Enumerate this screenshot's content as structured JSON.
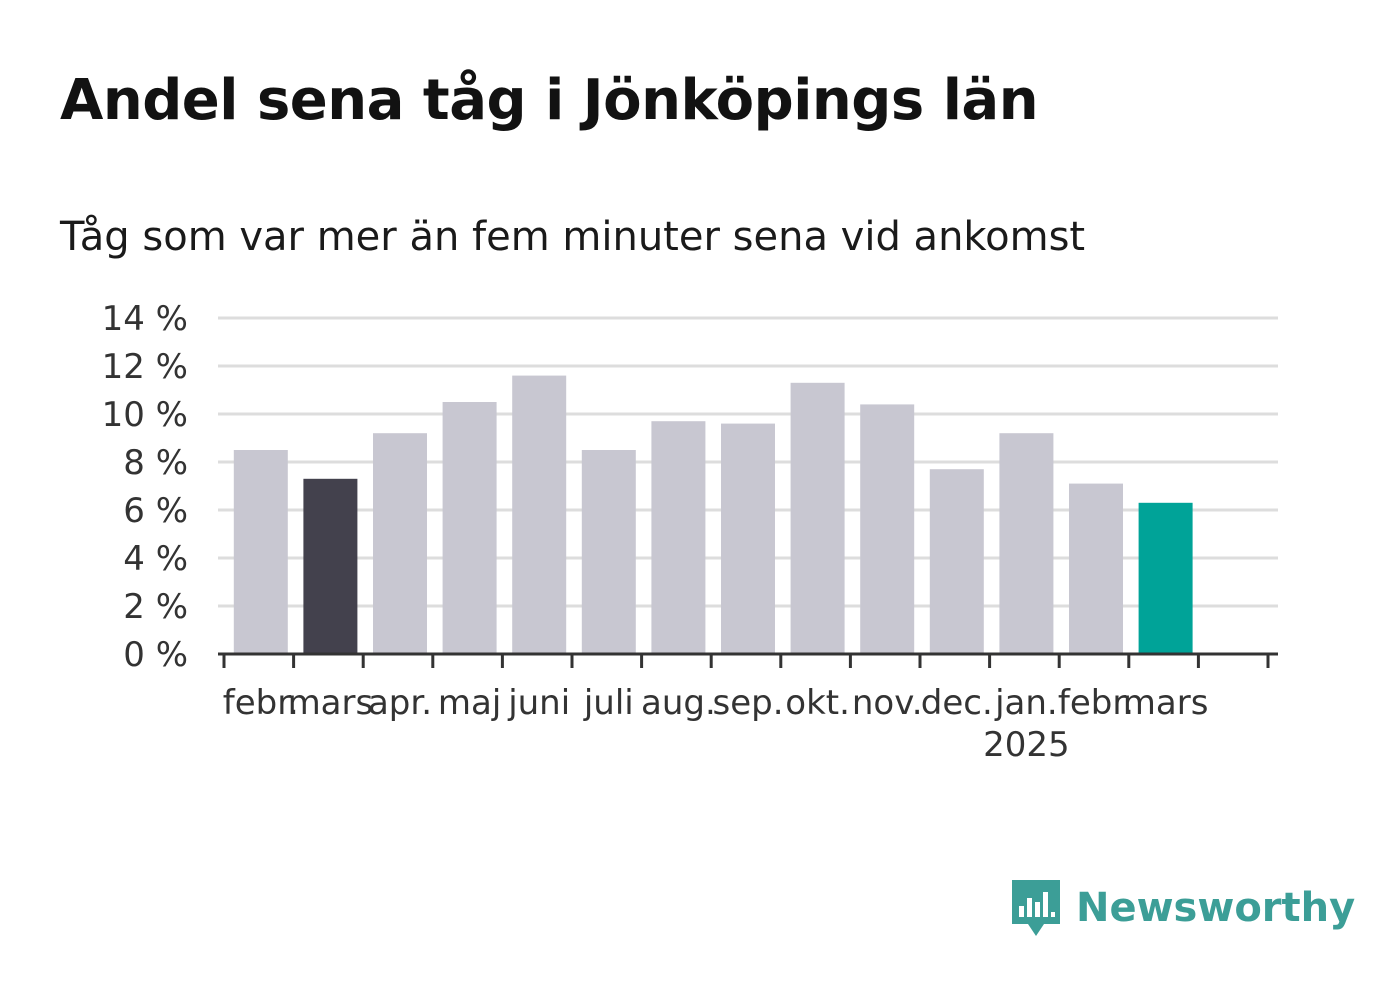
{
  "header": {
    "title": "Andel sena tåg i Jönköpings län",
    "subtitle": "Tåg som var mer än fem minuter sena vid ankomst"
  },
  "brand": {
    "name": "Newsworthy",
    "icon": "newsworthy-logo-icon",
    "color": "#3c9e97"
  },
  "colors": {
    "default_bar": "#c8c7d1",
    "highlight_prev_year": "#43414d",
    "highlight_current": "#00a398",
    "grid": "#dddddd",
    "axis": "#333333"
  },
  "chart_data": {
    "type": "bar",
    "title": "Andel sena tåg i Jönköpings län",
    "subtitle": "Tåg som var mer än fem minuter sena vid ankomst",
    "categories": [
      "febr.",
      "mars",
      "apr.",
      "maj",
      "juni",
      "juli",
      "aug.",
      "sep.",
      "okt.",
      "nov.",
      "dec.",
      "jan.",
      "febr.",
      "mars"
    ],
    "year_labels": [
      {
        "index": 11,
        "label": "2025"
      }
    ],
    "values": [
      8.5,
      7.3,
      9.2,
      10.5,
      11.6,
      8.5,
      9.7,
      9.6,
      11.3,
      10.4,
      7.7,
      9.2,
      7.1,
      6.3
    ],
    "highlight": {
      "1": "highlight_prev_year",
      "13": "highlight_current"
    },
    "ylim": [
      0,
      14
    ],
    "yticks": [
      0,
      2,
      4,
      6,
      8,
      10,
      12,
      14
    ],
    "ytick_labels": [
      "0 %",
      "2 %",
      "4 %",
      "6 %",
      "8 %",
      "10 %",
      "12 %",
      "14 %"
    ],
    "xlabel": "",
    "ylabel": "",
    "grid": true,
    "legend": "none"
  }
}
